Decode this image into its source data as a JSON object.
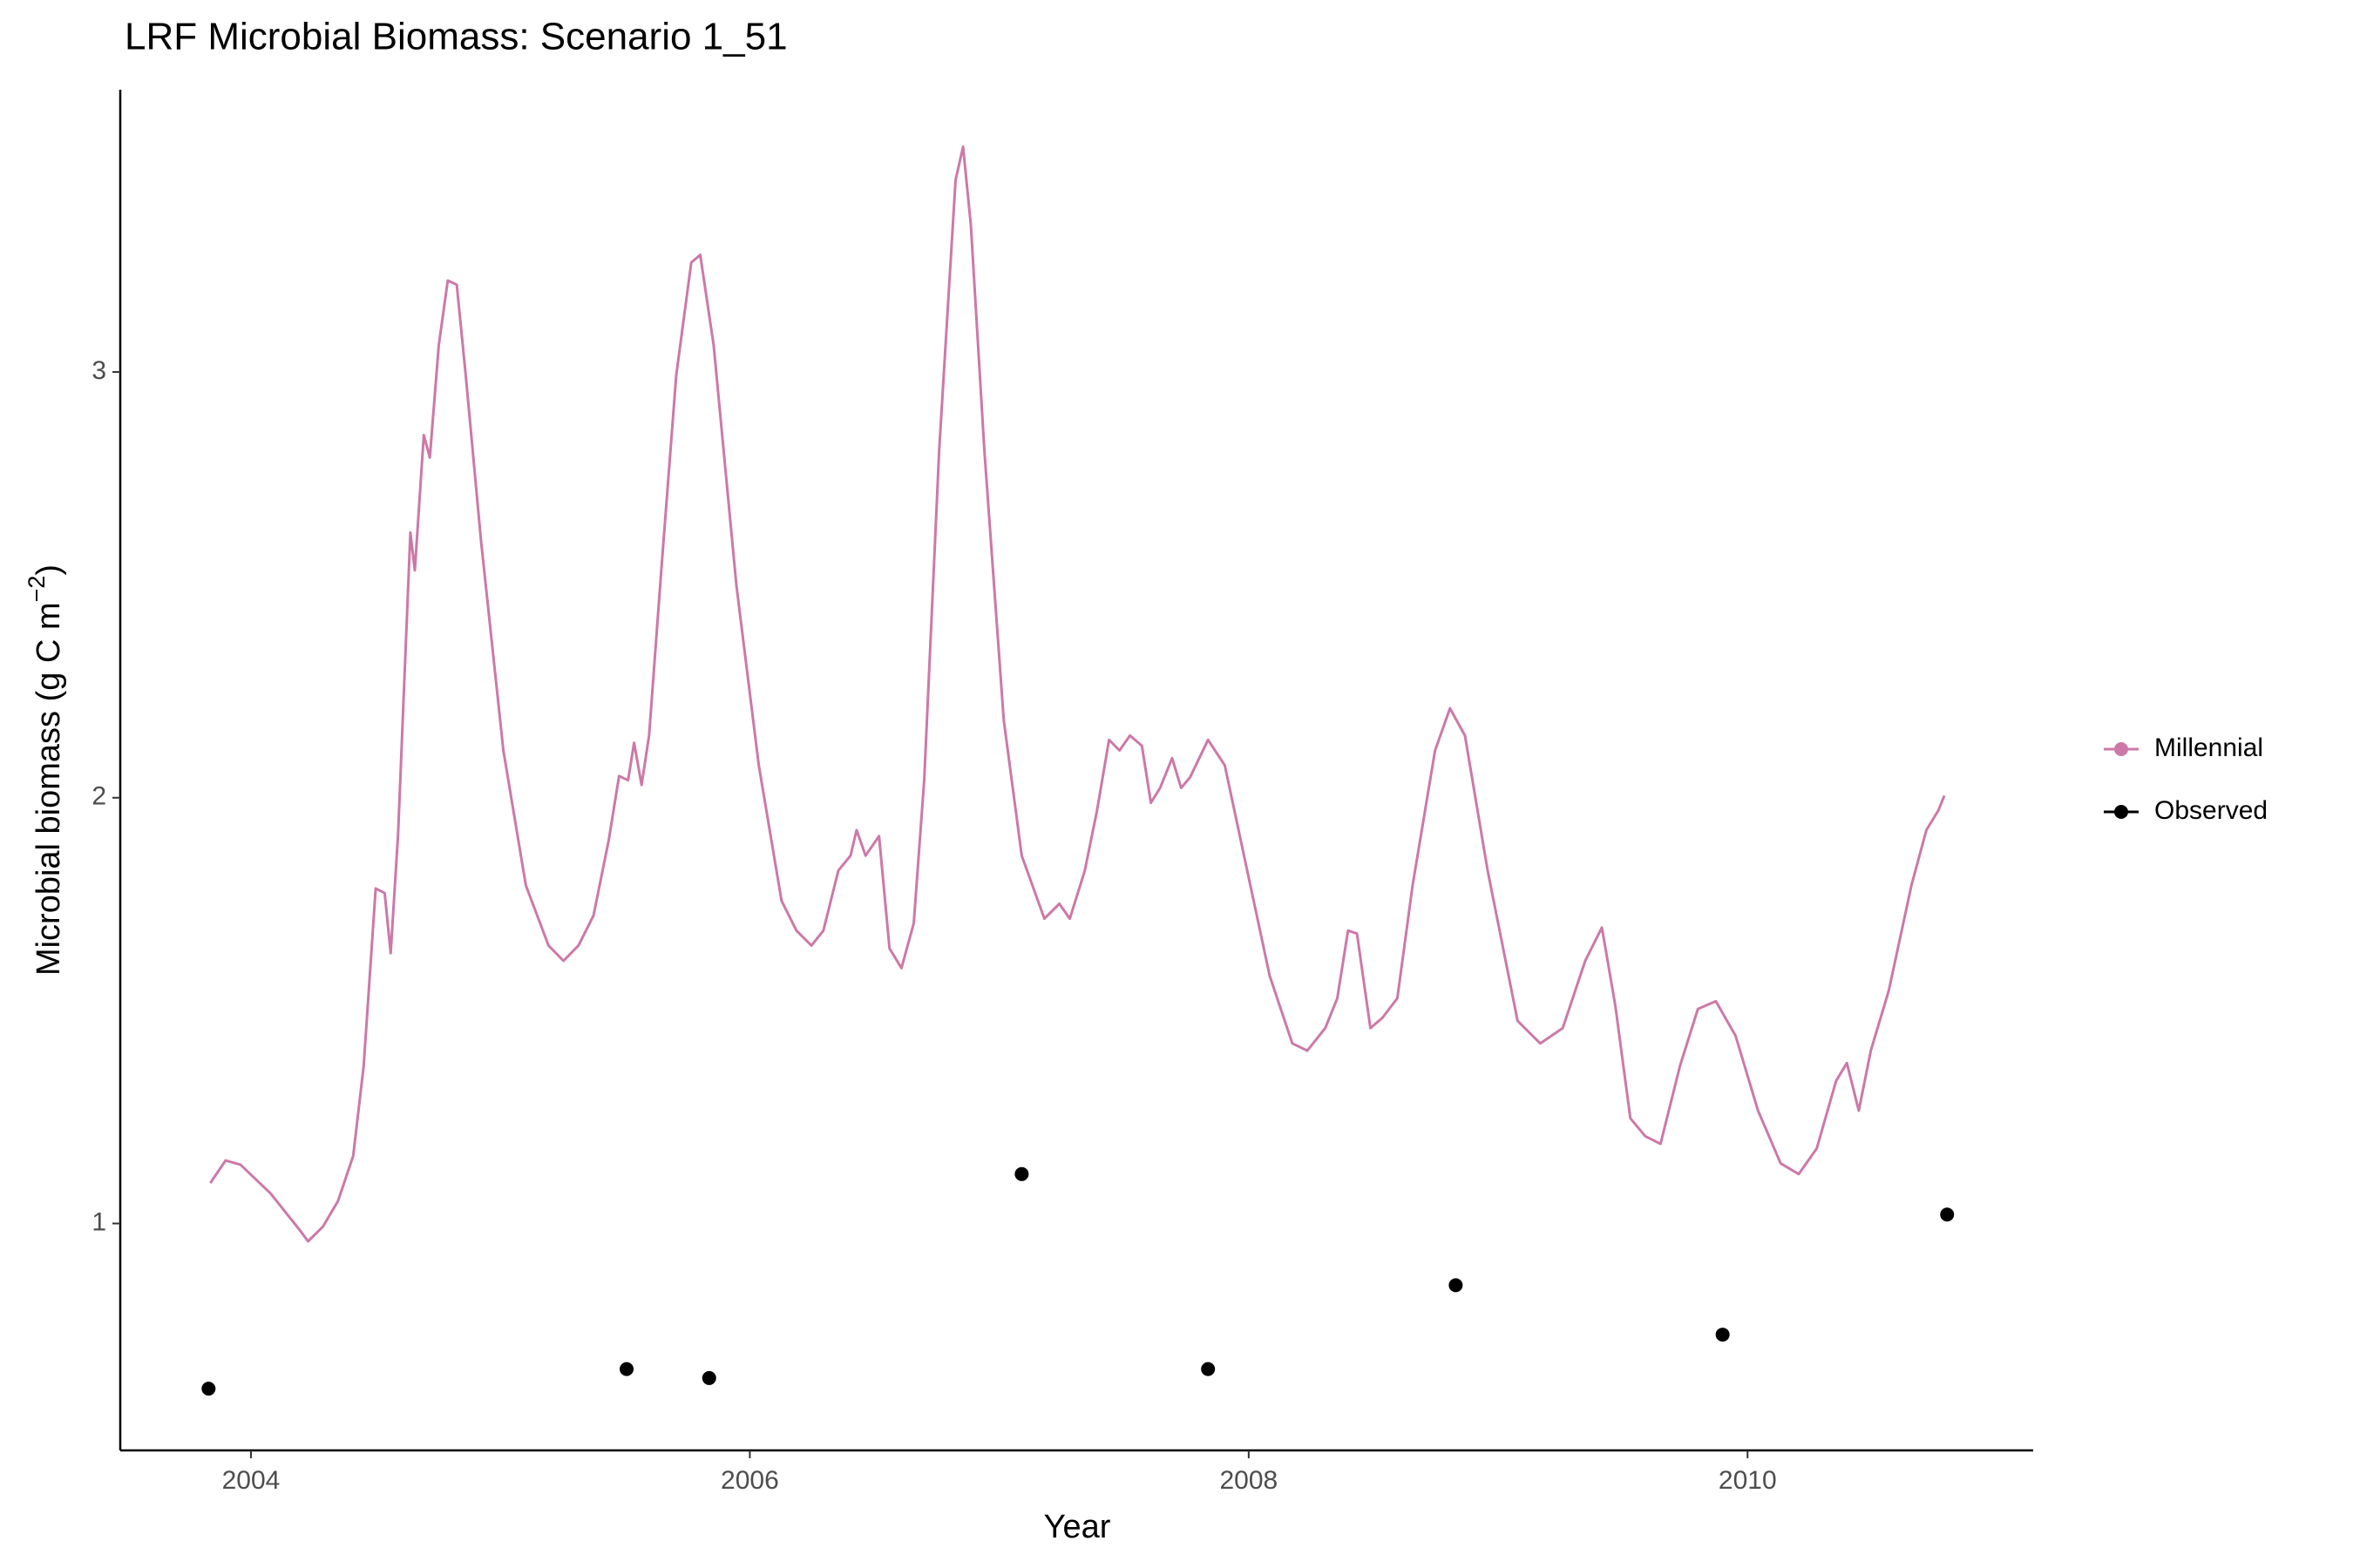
{
  "chart_data": {
    "type": "line",
    "title": "LRF Microbial Biomass: Scenario  1_51",
    "xlabel": "Year",
    "ylabel_parts": [
      "Microbial biomass (g C m",
      "−2",
      ")"
    ],
    "xlim": [
      2003.476,
      2011.145
    ],
    "xticks": [
      2004,
      2006,
      2008,
      2010
    ],
    "ylim": [
      0.467,
      3.663
    ],
    "yticks": [
      1,
      2,
      3
    ],
    "grid": false,
    "legend": "right",
    "series": [
      {
        "name": "Millennial",
        "color": "#cc79a7",
        "style": "line",
        "x": [
          2003.837,
          2003.898,
          2003.958,
          2004.078,
          2004.199,
          2004.229,
          2004.289,
          2004.349,
          2004.41,
          2004.452,
          2004.5,
          2004.536,
          2004.56,
          2004.59,
          2004.639,
          2004.657,
          2004.693,
          2004.717,
          2004.753,
          2004.789,
          2004.825,
          2004.861,
          2004.922,
          2005.012,
          2005.102,
          2005.193,
          2005.253,
          2005.313,
          2005.373,
          2005.434,
          2005.476,
          2005.512,
          2005.536,
          2005.566,
          2005.596,
          2005.645,
          2005.705,
          2005.765,
          2005.801,
          2005.855,
          2005.946,
          2006.036,
          2006.127,
          2006.187,
          2006.247,
          2006.295,
          2006.355,
          2006.404,
          2006.428,
          2006.464,
          2006.518,
          2006.56,
          2006.608,
          2006.657,
          2006.699,
          2006.759,
          2006.825,
          2006.855,
          2006.886,
          2006.94,
          2007.018,
          2007.09,
          2007.181,
          2007.241,
          2007.283,
          2007.343,
          2007.392,
          2007.44,
          2007.482,
          2007.524,
          2007.572,
          2007.608,
          2007.645,
          2007.693,
          2007.729,
          2007.765,
          2007.837,
          2007.904,
          2007.994,
          2008.084,
          2008.175,
          2008.235,
          2008.307,
          2008.355,
          2008.398,
          2008.434,
          2008.488,
          2008.536,
          2008.596,
          2008.657,
          2008.747,
          2008.807,
          2008.867,
          2008.958,
          2009.078,
          2009.169,
          2009.259,
          2009.349,
          2009.416,
          2009.47,
          2009.53,
          2009.59,
          2009.651,
          2009.729,
          2009.801,
          2009.873,
          2009.952,
          2010.042,
          2010.133,
          2010.205,
          2010.277,
          2010.355,
          2010.398,
          2010.446,
          2010.494,
          2010.566,
          2010.657,
          2010.717,
          2010.765,
          2010.789
        ],
        "values": [
          1.095,
          1.148,
          1.138,
          1.071,
          0.982,
          0.958,
          0.993,
          1.053,
          1.159,
          1.37,
          1.787,
          1.776,
          1.635,
          1.915,
          2.623,
          2.534,
          2.852,
          2.799,
          3.063,
          3.215,
          3.205,
          2.993,
          2.605,
          2.111,
          1.794,
          1.653,
          1.617,
          1.653,
          1.723,
          1.899,
          2.051,
          2.041,
          2.129,
          2.03,
          2.146,
          2.534,
          2.993,
          3.257,
          3.275,
          3.063,
          2.499,
          2.076,
          1.758,
          1.688,
          1.653,
          1.688,
          1.829,
          1.864,
          1.924,
          1.864,
          1.91,
          1.646,
          1.6,
          1.705,
          2.041,
          2.817,
          3.451,
          3.529,
          3.346,
          2.817,
          2.182,
          1.864,
          1.716,
          1.751,
          1.716,
          1.829,
          1.97,
          2.136,
          2.111,
          2.146,
          2.122,
          1.988,
          2.023,
          2.093,
          2.023,
          2.048,
          2.136,
          2.076,
          1.829,
          1.582,
          1.423,
          1.406,
          1.459,
          1.529,
          1.688,
          1.681,
          1.459,
          1.483,
          1.529,
          1.794,
          2.111,
          2.21,
          2.146,
          1.829,
          1.476,
          1.423,
          1.459,
          1.617,
          1.695,
          1.511,
          1.247,
          1.205,
          1.187,
          1.37,
          1.504,
          1.522,
          1.441,
          1.265,
          1.141,
          1.116,
          1.176,
          1.335,
          1.377,
          1.265,
          1.406,
          1.547,
          1.794,
          1.924,
          1.97,
          2.005
        ]
      },
      {
        "name": "Observed",
        "color": "#000000",
        "style": "points",
        "x": [
          2003.83,
          2005.506,
          2005.837,
          2007.09,
          2007.837,
          2008.83,
          2009.9,
          2010.8
        ],
        "values": [
          0.612,
          0.658,
          0.637,
          1.116,
          0.658,
          0.855,
          0.739,
          1.021
        ]
      }
    ]
  }
}
